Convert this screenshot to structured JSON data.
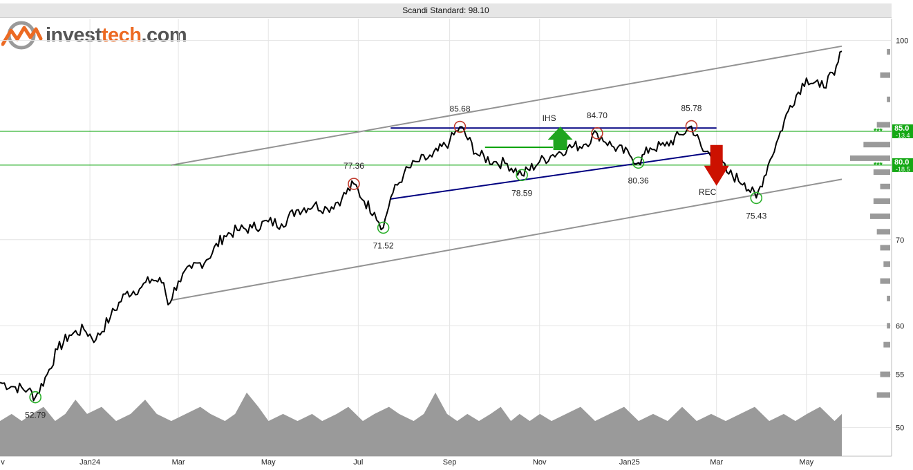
{
  "header": {
    "title": "Scandi Standard: 98.10"
  },
  "logo": {
    "text_main": "invest",
    "text_accent": "tech",
    "text_suffix": ".com"
  },
  "colors": {
    "price": "#000000",
    "channel": "#939393",
    "neckline": "#000080",
    "support_line": "#00a000",
    "top_marker": "#c0392b",
    "bottom_marker": "#2bb02b",
    "up_arrow": "#1fa51f",
    "down_arrow": "#cc1100",
    "volume": "#9a9a9a",
    "grid": "#e4e4e4"
  },
  "chart_data": {
    "type": "line",
    "title": "Scandi Standard: 98.10",
    "y_scale": "log",
    "ylim": [
      47.5,
      104
    ],
    "y_ticks": [
      50,
      55,
      60,
      70,
      100
    ],
    "x_ticks": [
      "Jan24",
      "Mar",
      "May",
      "Jul",
      "Sep",
      "Nov",
      "Jan25",
      "Mar",
      "May"
    ],
    "x_partial_tick": "v",
    "x_range": [
      "2023-11-01",
      "2025-05-25"
    ],
    "last_close": 98.1,
    "price_series": [
      [
        "2023-11-01",
        54.2
      ],
      [
        "2023-11-10",
        53.8
      ],
      [
        "2023-11-20",
        53.5
      ],
      [
        "2023-11-25",
        52.79
      ],
      [
        "2023-12-03",
        55.0
      ],
      [
        "2023-12-10",
        57.5
      ],
      [
        "2023-12-18",
        59.0
      ],
      [
        "2023-12-28",
        59.6
      ],
      [
        "2024-01-05",
        58.5
      ],
      [
        "2024-01-15",
        61.0
      ],
      [
        "2024-01-25",
        63.5
      ],
      [
        "2024-02-05",
        64.3
      ],
      [
        "2024-02-12",
        65.2
      ],
      [
        "2024-02-20",
        64.8
      ],
      [
        "2024-02-23",
        62.3
      ],
      [
        "2024-03-01",
        65.0
      ],
      [
        "2024-03-10",
        66.5
      ],
      [
        "2024-03-20",
        67.5
      ],
      [
        "2024-04-01",
        70.5
      ],
      [
        "2024-04-10",
        71.2
      ],
      [
        "2024-04-20",
        71.5
      ],
      [
        "2024-05-01",
        72.3
      ],
      [
        "2024-05-10",
        72.0
      ],
      [
        "2024-05-20",
        73.8
      ],
      [
        "2024-06-01",
        74.5
      ],
      [
        "2024-06-10",
        74.0
      ],
      [
        "2024-06-20",
        75.4
      ],
      [
        "2024-06-28",
        77.36
      ],
      [
        "2024-07-05",
        75.0
      ],
      [
        "2024-07-12",
        73.5
      ],
      [
        "2024-07-18",
        71.52
      ],
      [
        "2024-07-23",
        75.5
      ],
      [
        "2024-08-01",
        78.8
      ],
      [
        "2024-08-10",
        80.5
      ],
      [
        "2024-08-20",
        81.2
      ],
      [
        "2024-09-01",
        83.5
      ],
      [
        "2024-09-08",
        85.68
      ],
      [
        "2024-09-20",
        81.5
      ],
      [
        "2024-10-01",
        80.5
      ],
      [
        "2024-10-10",
        80.2
      ],
      [
        "2024-10-20",
        78.59
      ],
      [
        "2024-11-01",
        80.5
      ],
      [
        "2024-11-10",
        81.5
      ],
      [
        "2024-11-20",
        82.5
      ],
      [
        "2024-12-01",
        83.0
      ],
      [
        "2024-12-10",
        84.7
      ],
      [
        "2024-12-20",
        82.8
      ],
      [
        "2025-01-01",
        81.5
      ],
      [
        "2025-01-07",
        80.36
      ],
      [
        "2025-01-15",
        82.5
      ],
      [
        "2025-01-25",
        82.8
      ],
      [
        "2025-02-05",
        84.5
      ],
      [
        "2025-02-12",
        85.78
      ],
      [
        "2025-02-20",
        82.0
      ],
      [
        "2025-03-01",
        81.5
      ],
      [
        "2025-03-08",
        79.0
      ],
      [
        "2025-03-20",
        77.5
      ],
      [
        "2025-03-28",
        75.43
      ],
      [
        "2025-04-05",
        80.0
      ],
      [
        "2025-04-12",
        84.0
      ],
      [
        "2025-04-20",
        89.0
      ],
      [
        "2025-05-01",
        93.5
      ],
      [
        "2025-05-10",
        92.0
      ],
      [
        "2025-05-20",
        94.0
      ],
      [
        "2025-05-25",
        98.1
      ]
    ],
    "annotations": [
      {
        "label": "52.79",
        "date": "2023-11-25",
        "value": 52.79,
        "kind": "bottom",
        "text_pos": "below"
      },
      {
        "label": "77.36",
        "date": "2024-06-28",
        "value": 77.36,
        "kind": "top",
        "text_pos": "above"
      },
      {
        "label": "71.52",
        "date": "2024-07-18",
        "value": 71.52,
        "kind": "bottom",
        "text_pos": "below"
      },
      {
        "label": "85.68",
        "date": "2024-09-08",
        "value": 85.68,
        "kind": "top",
        "text_pos": "above"
      },
      {
        "label": "78.59",
        "date": "2024-10-20",
        "value": 78.59,
        "kind": "bottom",
        "text_pos": "below"
      },
      {
        "label": "84.70",
        "date": "2024-12-10",
        "value": 84.7,
        "kind": "top",
        "text_pos": "above"
      },
      {
        "label": "80.36",
        "date": "2025-01-07",
        "value": 80.36,
        "kind": "bottom",
        "text_pos": "below"
      },
      {
        "label": "85.78",
        "date": "2025-02-12",
        "value": 85.78,
        "kind": "top",
        "text_pos": "above"
      },
      {
        "label": "75.43",
        "date": "2025-03-28",
        "value": 75.43,
        "kind": "bottom",
        "text_pos": "below"
      }
    ],
    "patterns": [
      {
        "label": "IHS",
        "direction": "up",
        "date": "2024-11-15",
        "value": 85.3
      },
      {
        "label": "REC",
        "direction": "down",
        "date": "2025-03-01",
        "value": 77.0
      }
    ],
    "trend_lines": [
      {
        "name": "channel-upper",
        "from": [
          "2024-02-25",
          80.0
        ],
        "to": [
          "2025-05-25",
          99.0
        ]
      },
      {
        "name": "channel-lower",
        "from": [
          "2024-02-25",
          62.8
        ],
        "to": [
          "2025-05-25",
          78.0
        ]
      },
      {
        "name": "neckline-top",
        "from": [
          "2024-07-23",
          85.5
        ],
        "to": [
          "2025-03-01",
          85.5
        ]
      },
      {
        "name": "neckline-rising",
        "from": [
          "2024-07-23",
          75.3
        ],
        "to": [
          "2025-03-01",
          81.9
        ]
      },
      {
        "name": "ihs-neck",
        "from": [
          "2024-09-25",
          82.6
        ],
        "to": [
          "2024-11-10",
          82.6
        ]
      }
    ],
    "support_resistance": [
      {
        "value": 85.0,
        "label": "85.0",
        "pct": "-13.4",
        "stars": "***"
      },
      {
        "value": 80.0,
        "label": "80.0",
        "pct": "-18.5",
        "stars": "***"
      }
    ],
    "volume_profile": [
      [
        98,
        1
      ],
      [
        94,
        3
      ],
      [
        90,
        1
      ],
      [
        86,
        4
      ],
      [
        83,
        8
      ],
      [
        81,
        12
      ],
      [
        79,
        5
      ],
      [
        77,
        3
      ],
      [
        75,
        5
      ],
      [
        73,
        6
      ],
      [
        71,
        4
      ],
      [
        69,
        3
      ],
      [
        67,
        2
      ],
      [
        65,
        3
      ],
      [
        63,
        1
      ],
      [
        60,
        1
      ],
      [
        58,
        2
      ],
      [
        55,
        3
      ],
      [
        53,
        4
      ]
    ],
    "volume_series": [
      [
        0,
        3
      ],
      [
        8,
        4
      ],
      [
        15,
        3
      ],
      [
        22,
        4
      ],
      [
        30,
        5
      ],
      [
        38,
        3
      ],
      [
        45,
        4
      ],
      [
        52,
        6
      ],
      [
        60,
        4
      ],
      [
        70,
        5
      ],
      [
        80,
        3
      ],
      [
        90,
        4
      ],
      [
        100,
        6
      ],
      [
        108,
        4
      ],
      [
        118,
        3
      ],
      [
        128,
        4
      ],
      [
        138,
        5
      ],
      [
        145,
        4
      ],
      [
        155,
        3
      ],
      [
        162,
        4
      ],
      [
        170,
        7
      ],
      [
        178,
        5
      ],
      [
        185,
        3
      ],
      [
        195,
        4
      ],
      [
        205,
        3
      ],
      [
        215,
        4
      ],
      [
        222,
        3
      ],
      [
        232,
        4
      ],
      [
        240,
        5
      ],
      [
        250,
        3
      ],
      [
        258,
        4
      ],
      [
        268,
        5
      ],
      [
        275,
        4
      ],
      [
        285,
        3
      ],
      [
        292,
        4
      ],
      [
        300,
        7
      ],
      [
        308,
        4
      ],
      [
        315,
        3
      ],
      [
        322,
        4
      ],
      [
        330,
        3
      ],
      [
        338,
        4
      ],
      [
        345,
        5
      ],
      [
        352,
        3
      ],
      [
        358,
        4
      ],
      [
        365,
        3
      ],
      [
        372,
        4
      ],
      [
        380,
        3
      ],
      [
        390,
        4
      ],
      [
        400,
        5
      ],
      [
        410,
        3
      ],
      [
        420,
        4
      ],
      [
        430,
        5
      ],
      [
        440,
        3
      ],
      [
        450,
        4
      ],
      [
        460,
        3
      ],
      [
        470,
        5
      ],
      [
        480,
        3
      ],
      [
        490,
        4
      ],
      [
        500,
        3
      ],
      [
        510,
        4
      ],
      [
        520,
        5
      ],
      [
        530,
        3
      ],
      [
        540,
        4
      ],
      [
        548,
        3
      ],
      [
        556,
        4
      ],
      [
        565,
        5
      ],
      [
        575,
        3
      ],
      [
        580,
        4
      ]
    ]
  }
}
